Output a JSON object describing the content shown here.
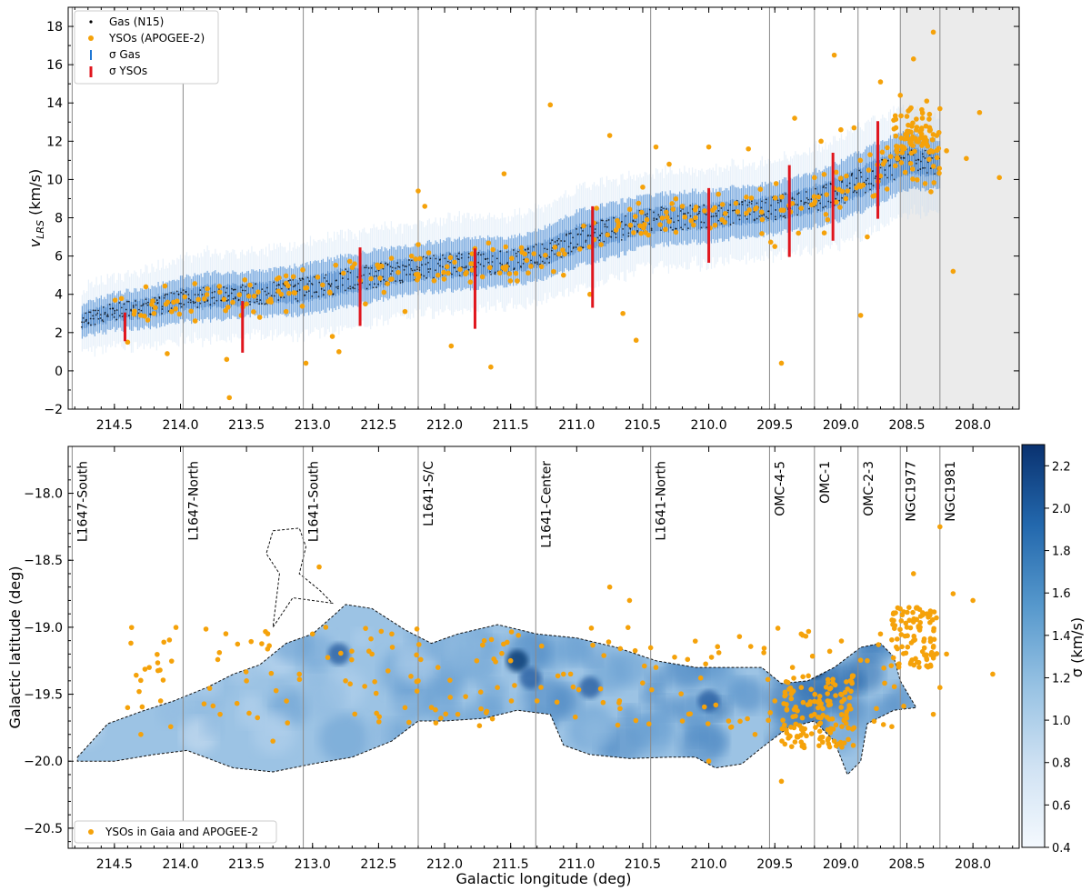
{
  "chart_data": [
    {
      "type": "scatter",
      "title": "",
      "xlabel": "",
      "ylabel": "v",
      "ylabel_sub": "LRS",
      "ylabel_unit": " (km/s)",
      "xlim": [
        214.85,
        207.65
      ],
      "ylim": [
        -2,
        19
      ],
      "xticks": [
        214.5,
        214.0,
        213.5,
        213.0,
        212.5,
        212.0,
        211.5,
        211.0,
        210.5,
        210.0,
        209.5,
        209.0,
        208.5,
        208.0
      ],
      "xtick_labels": [
        "214.5",
        "214.0",
        "213.5",
        "213.0",
        "212.5",
        "212.0",
        "211.5",
        "211.0",
        "210.5",
        "210.0",
        "209.5",
        "209.0",
        "208.5",
        "208.0"
      ],
      "yticks": [
        -2,
        0,
        2,
        4,
        6,
        8,
        10,
        12,
        14,
        16,
        18
      ],
      "ytick_labels": [
        "−2",
        "0",
        "2",
        "4",
        "6",
        "8",
        "10",
        "12",
        "14",
        "16",
        "18"
      ],
      "legend": {
        "position": "top-left",
        "entries": [
          "Gas (N15)",
          "YSOs (APOGEE-2)",
          "σ Gas",
          "σ YSOs"
        ]
      },
      "region_boundaries_l": [
        214.82,
        213.98,
        213.07,
        212.2,
        211.31,
        210.44,
        209.54,
        209.2,
        208.87,
        208.55,
        208.25
      ],
      "shaded_region_l": [
        208.55,
        207.65
      ],
      "gas_ridge": {
        "l": [
          214.75,
          214.5,
          214.25,
          214.0,
          213.75,
          213.5,
          213.25,
          213.0,
          212.75,
          212.5,
          212.25,
          212.0,
          211.75,
          211.5,
          211.25,
          211.0,
          210.75,
          210.5,
          210.25,
          210.0,
          209.75,
          209.5,
          209.25,
          209.0,
          208.75,
          208.5,
          208.25
        ],
        "v": [
          2.6,
          3.1,
          3.3,
          3.7,
          3.9,
          4.0,
          4.1,
          4.3,
          4.7,
          5.0,
          5.3,
          5.5,
          5.6,
          5.7,
          6.1,
          6.9,
          7.3,
          7.8,
          8.0,
          8.1,
          8.3,
          8.5,
          8.9,
          9.4,
          10.2,
          11.0,
          10.8
        ],
        "spread": [
          0.9,
          1.0,
          1.1,
          1.2,
          1.3,
          1.2,
          1.3,
          1.4,
          1.4,
          1.4,
          1.3,
          1.4,
          1.4,
          1.3,
          1.4,
          1.5,
          1.5,
          1.4,
          1.4,
          1.4,
          1.4,
          1.4,
          1.5,
          1.6,
          1.7,
          1.6,
          1.3
        ]
      },
      "sigma_yso_bars": [
        {
          "l": 214.42,
          "v": 2.3,
          "sigma": 0.75
        },
        {
          "l": 213.53,
          "v": 2.3,
          "sigma": 1.35
        },
        {
          "l": 212.64,
          "v": 4.4,
          "sigma": 2.05
        },
        {
          "l": 211.77,
          "v": 4.3,
          "sigma": 2.1
        },
        {
          "l": 210.88,
          "v": 5.95,
          "sigma": 2.65
        },
        {
          "l": 210.0,
          "v": 7.6,
          "sigma": 1.95
        },
        {
          "l": 209.39,
          "v": 8.35,
          "sigma": 2.4
        },
        {
          "l": 209.06,
          "v": 9.1,
          "sigma": 2.3
        },
        {
          "l": 208.72,
          "v": 10.5,
          "sigma": 2.55
        }
      ],
      "ysos_sample": [
        [
          214.4,
          1.5
        ],
        [
          214.2,
          3.0
        ],
        [
          214.3,
          2.9
        ],
        [
          214.1,
          0.9
        ],
        [
          213.65,
          0.6
        ],
        [
          213.63,
          -1.4
        ],
        [
          213.5,
          3.5
        ],
        [
          213.4,
          2.8
        ],
        [
          213.2,
          3.1
        ],
        [
          213.05,
          0.4
        ],
        [
          212.85,
          1.8
        ],
        [
          212.8,
          1.0
        ],
        [
          212.6,
          3.5
        ],
        [
          212.5,
          5.4
        ],
        [
          212.4,
          4.8
        ],
        [
          212.3,
          3.1
        ],
        [
          212.25,
          6.0
        ],
        [
          212.2,
          9.4
        ],
        [
          212.2,
          6.6
        ],
        [
          212.15,
          8.6
        ],
        [
          212.05,
          5.0
        ],
        [
          211.95,
          1.3
        ],
        [
          211.8,
          5.6
        ],
        [
          211.65,
          0.2
        ],
        [
          211.55,
          10.3
        ],
        [
          211.45,
          4.7
        ],
        [
          211.2,
          13.9
        ],
        [
          211.1,
          5.0
        ],
        [
          210.9,
          4.0
        ],
        [
          210.85,
          8.5
        ],
        [
          210.75,
          12.3
        ],
        [
          210.65,
          3.0
        ],
        [
          210.55,
          1.6
        ],
        [
          210.5,
          9.6
        ],
        [
          210.4,
          11.7
        ],
        [
          210.3,
          10.8
        ],
        [
          210.2,
          8.6
        ],
        [
          210.1,
          8.0
        ],
        [
          210.0,
          11.7
        ],
        [
          209.9,
          7.9
        ],
        [
          209.7,
          11.6
        ],
        [
          209.6,
          8.3
        ],
        [
          209.5,
          6.5
        ],
        [
          209.45,
          0.4
        ],
        [
          209.35,
          13.2
        ],
        [
          209.3,
          8.5
        ],
        [
          209.2,
          10.1
        ],
        [
          209.15,
          12.0
        ],
        [
          209.1,
          7.9
        ],
        [
          209.05,
          16.5
        ],
        [
          209.0,
          12.6
        ],
        [
          208.95,
          9.4
        ],
        [
          208.9,
          12.7
        ],
        [
          208.85,
          2.9
        ],
        [
          208.8,
          7.0
        ],
        [
          208.7,
          15.1
        ],
        [
          208.65,
          9.5
        ],
        [
          208.6,
          13.1
        ],
        [
          208.55,
          14.4
        ],
        [
          208.5,
          13.3
        ],
        [
          208.45,
          16.3
        ],
        [
          208.4,
          12.5
        ],
        [
          208.35,
          14.1
        ],
        [
          208.3,
          17.7
        ],
        [
          208.25,
          13.7
        ],
        [
          208.2,
          11.5
        ],
        [
          208.15,
          5.2
        ],
        [
          208.05,
          11.1
        ],
        [
          207.95,
          13.5
        ],
        [
          207.8,
          10.1
        ]
      ]
    },
    {
      "type": "heatmap",
      "title": "",
      "xlabel": "Galactic longitude (deg)",
      "ylabel": "Galactic latitude (deg)",
      "colorbar_label": "σ (km/s)",
      "xlim": [
        214.85,
        207.65
      ],
      "ylim": [
        -20.65,
        -17.65
      ],
      "xticks": [
        214.5,
        214.0,
        213.5,
        213.0,
        212.5,
        212.0,
        211.5,
        211.0,
        210.5,
        210.0,
        209.5,
        209.0,
        208.5,
        208.0
      ],
      "xtick_labels": [
        "214.5",
        "214.0",
        "213.5",
        "213.0",
        "212.5",
        "212.0",
        "211.5",
        "211.0",
        "210.5",
        "210.0",
        "209.5",
        "209.0",
        "208.5",
        "208.0"
      ],
      "yticks": [
        -18.0,
        -18.5,
        -19.0,
        -19.5,
        -20.0,
        -20.5
      ],
      "ytick_labels": [
        "−18.0",
        "−18.5",
        "−19.0",
        "−19.5",
        "−20.0",
        "−20.5"
      ],
      "colorbar_range": [
        0.4,
        2.3
      ],
      "colorbar_ticks": [
        0.4,
        0.6,
        0.8,
        1.0,
        1.2,
        1.4,
        1.6,
        1.8,
        2.0,
        2.2
      ],
      "colorbar_tick_labels": [
        "0.4",
        "0.6",
        "0.8",
        "1.0",
        "1.2",
        "1.4",
        "1.6",
        "1.8",
        "2.0",
        "2.2"
      ],
      "legend": {
        "position": "bottom-left",
        "entries": [
          "YSOs in Gaia and APOGEE-2"
        ]
      },
      "regions": [
        {
          "name": "L1647-South",
          "l_min": 214.82
        },
        {
          "name": "L1647-North",
          "l_min": 213.98
        },
        {
          "name": "L1641-South",
          "l_min": 213.07
        },
        {
          "name": "L1641-S/C",
          "l_min": 212.2
        },
        {
          "name": "L1641-Center",
          "l_min": 211.31
        },
        {
          "name": "L1641-North",
          "l_min": 210.44
        },
        {
          "name": "OMC-4-5",
          "l_min": 209.54
        },
        {
          "name": "OMC-1",
          "l_min": 209.2
        },
        {
          "name": "OMC-2-3",
          "l_min": 208.87
        },
        {
          "name": "NGC1977",
          "l_min": 208.55
        },
        {
          "name": "NGC1981",
          "l_min": 208.25
        }
      ],
      "cloud_top_edge": [
        [
          214.78,
          -19.97
        ],
        [
          214.55,
          -19.72
        ],
        [
          214.3,
          -19.63
        ],
        [
          214.05,
          -19.55
        ],
        [
          213.8,
          -19.45
        ],
        [
          213.6,
          -19.35
        ],
        [
          213.4,
          -19.28
        ],
        [
          213.2,
          -19.12
        ],
        [
          213.0,
          -19.05
        ],
        [
          212.85,
          -18.92
        ],
        [
          212.75,
          -18.83
        ],
        [
          212.55,
          -18.86
        ],
        [
          212.3,
          -19.02
        ],
        [
          212.1,
          -19.12
        ],
        [
          211.9,
          -19.05
        ],
        [
          211.6,
          -18.98
        ],
        [
          211.3,
          -19.05
        ],
        [
          211.0,
          -19.08
        ],
        [
          210.7,
          -19.15
        ],
        [
          210.4,
          -19.25
        ],
        [
          210.1,
          -19.3
        ],
        [
          209.85,
          -19.3
        ],
        [
          209.6,
          -19.3
        ],
        [
          209.45,
          -19.42
        ],
        [
          209.25,
          -19.4
        ],
        [
          209.05,
          -19.3
        ],
        [
          208.85,
          -19.15
        ],
        [
          208.7,
          -19.12
        ],
        [
          208.6,
          -19.22
        ],
        [
          208.55,
          -19.4
        ],
        [
          208.43,
          -19.6
        ]
      ],
      "cloud_bottom_edge": [
        [
          214.78,
          -20.0
        ],
        [
          214.5,
          -20.0
        ],
        [
          214.2,
          -19.95
        ],
        [
          213.95,
          -19.92
        ],
        [
          213.6,
          -20.05
        ],
        [
          213.3,
          -20.08
        ],
        [
          213.0,
          -20.02
        ],
        [
          212.7,
          -19.97
        ],
        [
          212.4,
          -19.85
        ],
        [
          212.2,
          -19.7
        ],
        [
          212.0,
          -19.7
        ],
        [
          211.7,
          -19.68
        ],
        [
          211.45,
          -19.62
        ],
        [
          211.2,
          -19.65
        ],
        [
          211.1,
          -19.88
        ],
        [
          210.9,
          -19.95
        ],
        [
          210.6,
          -19.98
        ],
        [
          210.3,
          -19.97
        ],
        [
          210.1,
          -19.97
        ],
        [
          209.95,
          -20.05
        ],
        [
          209.75,
          -20.02
        ],
        [
          209.6,
          -19.9
        ],
        [
          209.4,
          -19.75
        ],
        [
          209.2,
          -19.7
        ],
        [
          209.05,
          -19.85
        ],
        [
          208.95,
          -20.1
        ],
        [
          208.85,
          -20.0
        ],
        [
          208.8,
          -19.72
        ],
        [
          208.6,
          -19.62
        ],
        [
          208.43,
          -19.6
        ]
      ],
      "hotspots": [
        {
          "l": 211.45,
          "b": -19.25,
          "sigma": 2.1
        },
        {
          "l": 211.35,
          "b": -19.38,
          "sigma": 1.8
        },
        {
          "l": 210.9,
          "b": -19.45,
          "sigma": 1.7
        },
        {
          "l": 209.2,
          "b": -19.3,
          "sigma": 2.3
        },
        {
          "l": 210.0,
          "b": -19.55,
          "sigma": 1.7
        },
        {
          "l": 212.8,
          "b": -19.2,
          "sigma": 1.5
        }
      ],
      "ysos_sample": [
        [
          214.4,
          -19.6
        ],
        [
          214.15,
          -19.55
        ],
        [
          214.3,
          -19.8
        ],
        [
          213.7,
          -19.65
        ],
        [
          213.5,
          -19.4
        ],
        [
          213.3,
          -19.85
        ],
        [
          213.1,
          -19.35
        ],
        [
          213.0,
          -19.05
        ],
        [
          212.95,
          -18.55
        ],
        [
          212.9,
          -19.0
        ],
        [
          212.75,
          -19.4
        ],
        [
          212.55,
          -19.2
        ],
        [
          212.4,
          -19.05
        ],
        [
          212.3,
          -19.6
        ],
        [
          212.2,
          -19.4
        ],
        [
          212.05,
          -19.3
        ],
        [
          211.9,
          -19.65
        ],
        [
          211.7,
          -19.1
        ],
        [
          211.5,
          -19.25
        ],
        [
          211.3,
          -19.55
        ],
        [
          211.1,
          -19.35
        ],
        [
          210.75,
          -18.7
        ],
        [
          210.6,
          -18.8
        ],
        [
          210.4,
          -19.3
        ],
        [
          210.2,
          -19.7
        ],
        [
          210.0,
          -20.0
        ],
        [
          209.85,
          -19.7
        ],
        [
          209.65,
          -19.8
        ],
        [
          209.5,
          -19.55
        ],
        [
          209.45,
          -20.15
        ],
        [
          209.3,
          -19.45
        ],
        [
          209.3,
          -19.05
        ],
        [
          209.2,
          -19.65
        ],
        [
          209.1,
          -19.55
        ],
        [
          209.05,
          -19.85
        ],
        [
          209.0,
          -19.5
        ],
        [
          208.9,
          -19.75
        ],
        [
          208.8,
          -19.25
        ],
        [
          208.7,
          -19.05
        ],
        [
          208.6,
          -18.95
        ],
        [
          208.5,
          -19.0
        ],
        [
          208.45,
          -19.1
        ],
        [
          208.4,
          -19.0
        ],
        [
          208.35,
          -18.9
        ],
        [
          208.3,
          -19.15
        ],
        [
          208.25,
          -19.45
        ],
        [
          208.2,
          -19.2
        ],
        [
          208.15,
          -18.75
        ],
        [
          208.0,
          -18.8
        ],
        [
          207.85,
          -19.35
        ],
        [
          208.45,
          -18.6
        ],
        [
          208.25,
          -18.25
        ],
        [
          208.3,
          -19.65
        ]
      ]
    }
  ],
  "colors": {
    "gas_dots": "#000000",
    "gas_band": "#1f6fc9",
    "yso": "#f5a20a",
    "sigma_gas": "#1f77d4",
    "sigma_yso": "#e0151d",
    "boundary_lines": "#8a8a8a",
    "shade": "#ebebeb",
    "map_low": "#f1f7fd",
    "map_high": "#08306b"
  }
}
